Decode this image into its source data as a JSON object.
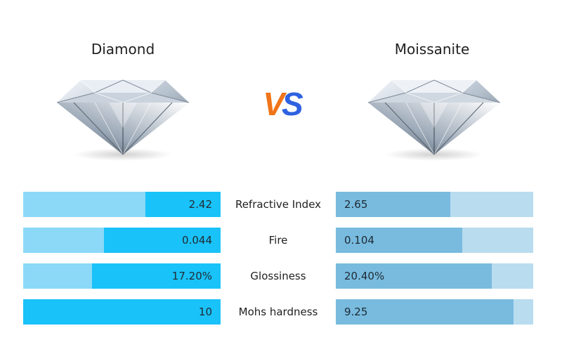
{
  "left_title": "Diamond",
  "right_title": "Moissanite",
  "vs_text": "VS",
  "colors": {
    "vs_v": "#f07418",
    "vs_s": "#2f62e0",
    "left_track": "#8bd9f7",
    "left_fill": "#19c2f8",
    "right_track": "#b9dcef",
    "right_fill": "#78bbdf"
  },
  "rows": [
    {
      "label": "Refractive Index",
      "left_value": "2.42",
      "right_value": "2.65",
      "left_fill": 0.38,
      "right_fill": 0.58
    },
    {
      "label": "Fire",
      "left_value": "0.044",
      "right_value": "0.104",
      "left_fill": 0.59,
      "right_fill": 0.64
    },
    {
      "label": "Glossiness",
      "left_value": "17.20%",
      "right_value": "20.40%",
      "left_fill": 0.65,
      "right_fill": 0.79
    },
    {
      "label": "Mohs hardness",
      "left_value": "10",
      "right_value": "9.25",
      "left_fill": 1.0,
      "right_fill": 0.9
    }
  ]
}
